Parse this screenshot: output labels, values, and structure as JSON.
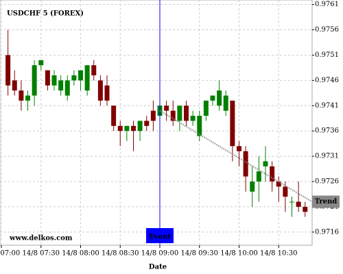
{
  "chart_data": {
    "type": "candlestick",
    "title": "USDCHF 5 (FOREX)",
    "xlabel": "Date",
    "watermark": "www.delkos.com",
    "categories": [
      "14/8 07:00",
      null,
      null,
      null,
      null,
      null,
      "14/8 07:30",
      null,
      null,
      null,
      null,
      null,
      "14/8 08:00",
      null,
      null,
      null,
      null,
      null,
      "14/8 08:30",
      null,
      null,
      null,
      null,
      null,
      "14/8 09:00",
      null,
      null,
      null,
      null,
      null,
      "14/8 09:30",
      null,
      null,
      null,
      null,
      null,
      "14/8 10:00",
      null,
      null,
      null,
      null,
      null,
      "14/8 10:30",
      null,
      null,
      null,
      null
    ],
    "open": [
      null,
      0.9751,
      0.9746,
      0.9744,
      0.9742,
      0.9743,
      0.9749,
      0.9748,
      0.9745,
      0.9744,
      0.9743,
      0.9746,
      0.9746,
      0.9744,
      0.9749,
      0.9746,
      0.9745,
      0.9741,
      0.9737,
      0.9736,
      0.9737,
      0.9736,
      0.9738,
      0.974,
      0.9739,
      0.9741,
      0.974,
      0.9738,
      0.9741,
      0.9738,
      0.9735,
      0.9739,
      0.9742,
      0.9741,
      0.974,
      0.9742,
      0.9733,
      0.9732,
      0.9724,
      0.9726,
      0.9729,
      0.9729,
      0.9726,
      0.9725,
      0.9722,
      0.9722,
      0.9721
    ],
    "high": [
      null,
      0.9756,
      0.9748,
      0.9746,
      0.9744,
      0.975,
      0.975,
      0.9748,
      0.9748,
      0.9747,
      0.9747,
      0.9748,
      0.9748,
      0.9749,
      0.975,
      0.9747,
      0.9747,
      0.9741,
      0.9738,
      0.9737,
      0.9738,
      0.9738,
      0.9739,
      0.9742,
      0.9746,
      0.9742,
      0.9742,
      0.9741,
      0.9742,
      0.974,
      0.974,
      0.9742,
      0.9743,
      0.9746,
      0.9744,
      0.9742,
      0.9734,
      0.9733,
      0.9729,
      0.9731,
      0.9733,
      0.973,
      0.9727,
      0.9726,
      0.9723,
      0.9726,
      0.9722
    ],
    "low": [
      null,
      0.9743,
      0.9743,
      0.974,
      0.974,
      0.9741,
      0.9748,
      0.9744,
      0.9744,
      0.9743,
      0.9742,
      0.9745,
      0.9744,
      0.9743,
      0.9746,
      0.9741,
      0.9741,
      0.9736,
      0.9733,
      0.9734,
      0.9732,
      0.9734,
      0.9736,
      0.9736,
      0.9738,
      0.9738,
      0.9737,
      0.9736,
      0.9737,
      0.9737,
      0.9734,
      0.9738,
      0.9741,
      0.974,
      0.9739,
      0.973,
      0.9729,
      0.9724,
      0.9721,
      0.9722,
      0.9726,
      0.9724,
      0.9722,
      0.972,
      0.9719,
      0.972,
      0.9719
    ],
    "close": [
      null,
      0.9745,
      0.9744,
      0.9742,
      0.9743,
      0.9749,
      0.975,
      0.9745,
      0.9747,
      0.9746,
      0.9746,
      0.9747,
      0.9748,
      0.9749,
      0.9747,
      0.9742,
      0.9742,
      0.9737,
      0.9736,
      0.9737,
      0.9736,
      0.9738,
      0.9737,
      0.9738,
      0.9741,
      0.974,
      0.9738,
      0.9741,
      0.9738,
      0.9739,
      0.9739,
      0.9742,
      0.9743,
      0.9744,
      0.9743,
      0.9733,
      0.9732,
      0.9727,
      0.9726,
      0.9728,
      0.973,
      0.9726,
      0.9725,
      0.9723,
      0.9722,
      0.9721,
      0.972
    ],
    "up_color": "#008000",
    "down_color": "#800000",
    "ylim": [
      0.97134,
      0.97619
    ],
    "yticks": [
      0.9716,
      0.9721,
      0.9726,
      0.9731,
      0.9736,
      0.9741,
      0.9746,
      0.9751,
      0.9756,
      0.9761
    ],
    "grid": true,
    "event": {
      "label": "Event",
      "category": "14/8 09:00",
      "color": "#0000ff"
    },
    "trend": {
      "label": "Trend",
      "values": [
        0.974,
        0.9722
      ],
      "color": "#888888"
    }
  }
}
